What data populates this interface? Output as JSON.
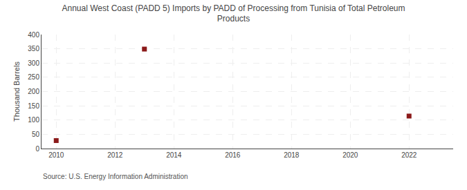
{
  "chart_data": {
    "type": "scatter",
    "title": "Annual West Coast (PADD 5) Imports by PADD of Processing from Tunisia of Total Petroleum\nProducts",
    "y_label": "Thousand Barrels",
    "annotations": [
      "Source: U.S. Energy Information Administration"
    ],
    "x": [
      2010,
      2013,
      2022
    ],
    "values": [
      28,
      349,
      114
    ],
    "color": "#8b1a1a",
    "marker": "square",
    "xlim": [
      2009.5,
      2023.5
    ],
    "xticks": [
      2010,
      2012,
      2014,
      2016,
      2018,
      2020,
      2022
    ],
    "ylim": [
      0,
      400
    ],
    "yticks": [
      0,
      50,
      100,
      150,
      200,
      250,
      300,
      350,
      400
    ],
    "grid": true
  }
}
